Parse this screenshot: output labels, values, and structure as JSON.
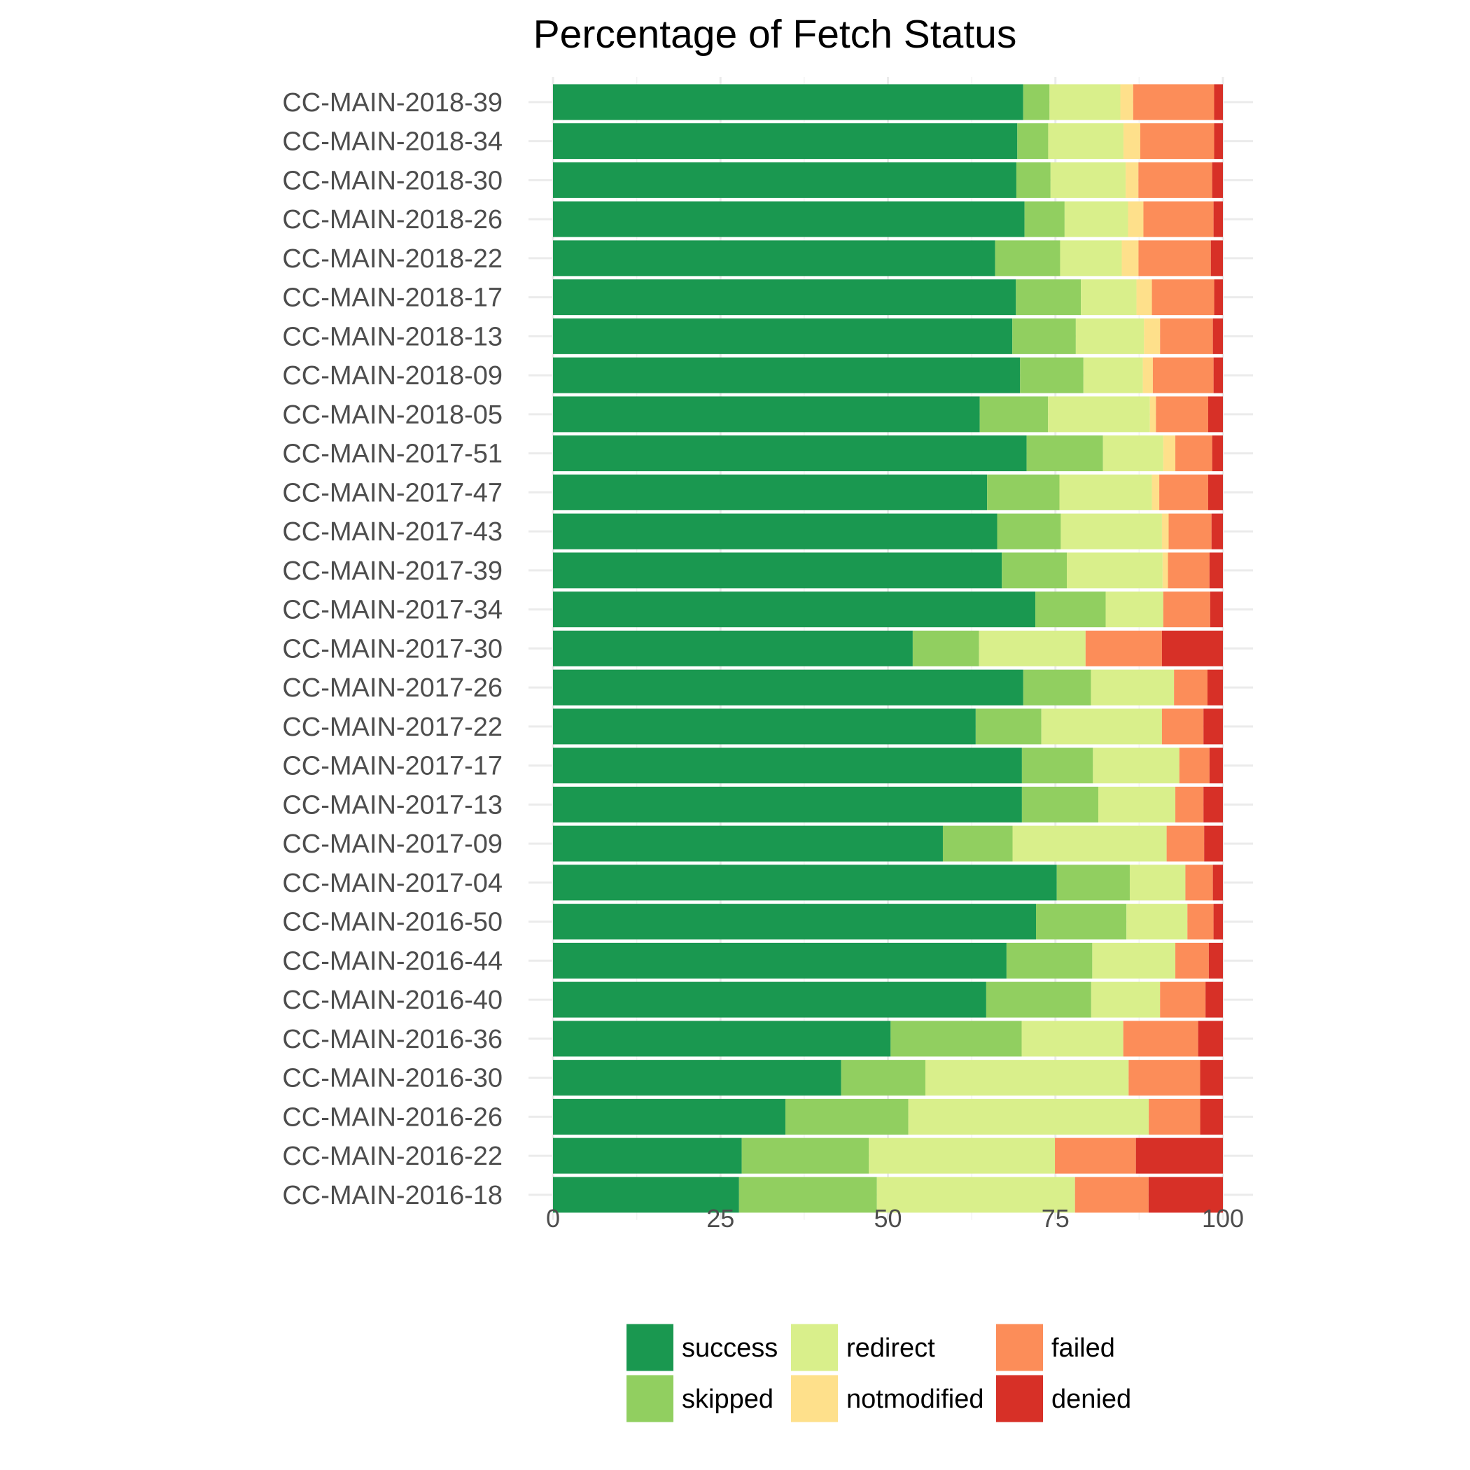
{
  "chart_data": {
    "type": "bar",
    "orientation": "horizontal",
    "stacked": true,
    "title": "Percentage of Fetch Status",
    "xlabel": "",
    "ylabel": "",
    "xlim": [
      0,
      100
    ],
    "x_ticks": [
      0,
      25,
      50,
      75,
      100
    ],
    "grid": true,
    "legend_position": "bottom",
    "categories": [
      "CC-MAIN-2018-39",
      "CC-MAIN-2018-34",
      "CC-MAIN-2018-30",
      "CC-MAIN-2018-26",
      "CC-MAIN-2018-22",
      "CC-MAIN-2018-17",
      "CC-MAIN-2018-13",
      "CC-MAIN-2018-09",
      "CC-MAIN-2018-05",
      "CC-MAIN-2017-51",
      "CC-MAIN-2017-47",
      "CC-MAIN-2017-43",
      "CC-MAIN-2017-39",
      "CC-MAIN-2017-34",
      "CC-MAIN-2017-30",
      "CC-MAIN-2017-26",
      "CC-MAIN-2017-22",
      "CC-MAIN-2017-17",
      "CC-MAIN-2017-13",
      "CC-MAIN-2017-09",
      "CC-MAIN-2017-04",
      "CC-MAIN-2016-50",
      "CC-MAIN-2016-44",
      "CC-MAIN-2016-40",
      "CC-MAIN-2016-36",
      "CC-MAIN-2016-30",
      "CC-MAIN-2016-26",
      "CC-MAIN-2016-22",
      "CC-MAIN-2016-18"
    ],
    "series": [
      {
        "name": "success",
        "color": "#1a9850",
        "values": [
          69.7,
          69.1,
          69.1,
          70.6,
          66.0,
          69.1,
          68.7,
          70.0,
          63.7,
          70.7,
          64.8,
          66.3,
          67.0,
          72.0,
          53.7,
          70.2,
          63.1,
          70.0,
          70.0,
          58.2,
          75.2,
          72.1,
          67.7,
          64.8,
          50.5,
          43.1,
          34.8,
          28.2,
          27.8
        ]
      },
      {
        "name": "skipped",
        "color": "#91cf60",
        "values": [
          3.9,
          4.6,
          5.1,
          6.0,
          9.7,
          9.7,
          9.5,
          9.5,
          10.2,
          11.4,
          10.8,
          9.5,
          9.7,
          10.5,
          9.9,
          10.1,
          9.8,
          10.6,
          11.4,
          10.4,
          10.9,
          13.5,
          12.8,
          15.7,
          19.6,
          12.6,
          18.4,
          19.0,
          20.6
        ]
      },
      {
        "name": "redirect",
        "color": "#d9ef8b",
        "values": [
          10.5,
          11.2,
          11.2,
          9.5,
          9.2,
          8.3,
          10.2,
          8.9,
          15.2,
          9.0,
          13.8,
          15.1,
          14.3,
          8.6,
          15.9,
          12.4,
          18.0,
          12.9,
          11.5,
          23.0,
          8.3,
          9.1,
          12.4,
          10.3,
          15.2,
          30.4,
          36.0,
          27.8,
          29.6
        ]
      },
      {
        "name": "notmodified",
        "color": "#fee08b",
        "values": [
          1.9,
          2.5,
          1.9,
          2.3,
          2.5,
          2.3,
          2.4,
          1.5,
          0.9,
          1.8,
          1.1,
          1.0,
          0.8,
          0,
          0,
          0,
          0,
          0,
          0,
          0,
          0,
          0,
          0,
          0,
          0,
          0,
          0,
          0,
          0
        ]
      },
      {
        "name": "failed",
        "color": "#fc8d59",
        "values": [
          12.0,
          11.0,
          11.0,
          10.5,
          10.8,
          9.3,
          7.9,
          9.1,
          7.8,
          5.5,
          7.3,
          6.4,
          6.2,
          7.0,
          11.4,
          5.0,
          6.2,
          4.5,
          4.2,
          5.6,
          4.1,
          3.9,
          5.0,
          6.8,
          11.2,
          10.7,
          7.7,
          12.1,
          11.0
        ]
      },
      {
        "name": "denied",
        "color": "#d73027",
        "values": [
          1.3,
          1.3,
          1.6,
          1.4,
          1.8,
          1.3,
          1.5,
          1.4,
          2.2,
          1.6,
          2.2,
          1.7,
          2.0,
          1.9,
          9.1,
          2.3,
          2.9,
          2.0,
          2.9,
          2.8,
          1.5,
          1.4,
          2.1,
          2.6,
          3.7,
          3.4,
          3.4,
          13.0,
          11.1
        ]
      }
    ]
  }
}
